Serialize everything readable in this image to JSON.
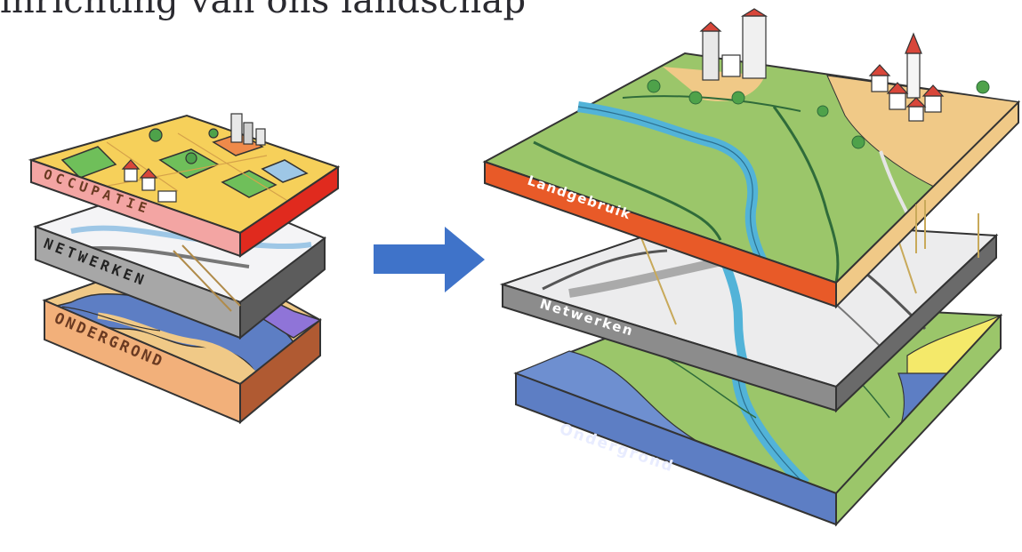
{
  "title": "inrichting van ons landschap",
  "left_diagram": {
    "layers": [
      "OCCUPATIE",
      "NETWERKEN",
      "ONDERGROND"
    ]
  },
  "right_diagram": {
    "layers": [
      "Landgebruik",
      "Netwerken",
      "Ondergrond"
    ]
  },
  "arrow": {
    "direction": "right",
    "color": "#3f73c9"
  },
  "colors": {
    "orange_edge": "#e85a28",
    "grey_edge": "#8a8a8a",
    "blue_layer": "#5d7ec4",
    "green_land": "#9bc66a",
    "water": "#52b3d8",
    "sand": "#f0c987",
    "yellow": "#f4e96a",
    "pink_edge": "#f3a5a3",
    "purple": "#8f74d8"
  }
}
